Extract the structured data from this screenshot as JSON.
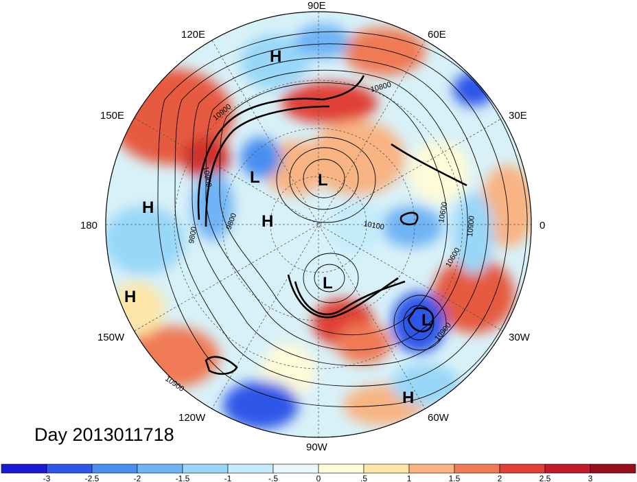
{
  "plot": {
    "date_label": "Day 2013011718",
    "longitude_labels": [
      "90E",
      "60E",
      "30E",
      "0",
      "30W",
      "60W",
      "90W",
      "120W",
      "150W",
      "180",
      "150E",
      "120E"
    ],
    "pressure_centers": [
      "H",
      "L",
      "L",
      "H",
      "L",
      "L",
      "H",
      "H",
      "H"
    ],
    "contour_labels": [
      "10800",
      "10900",
      "10900",
      "9800",
      "10100",
      "10600",
      "10900",
      "10600",
      "10900",
      "10900",
      "9800"
    ]
  },
  "colorbar": {
    "ticks": [
      "-3",
      "-2.5",
      "-2",
      "-1.5",
      "-1",
      "-.5",
      "0",
      ".5",
      "1",
      "1.5",
      "2",
      "2.5",
      "3"
    ],
    "colors": [
      "#1a1ad6",
      "#2e57e8",
      "#4a8ef0",
      "#6fb4f5",
      "#98d7f8",
      "#c5ecfb",
      "#e9f8fc",
      "#fefbd8",
      "#fde6a8",
      "#f8b483",
      "#ef7a55",
      "#e04036",
      "#c11c2a",
      "#9a0e1c"
    ]
  }
}
